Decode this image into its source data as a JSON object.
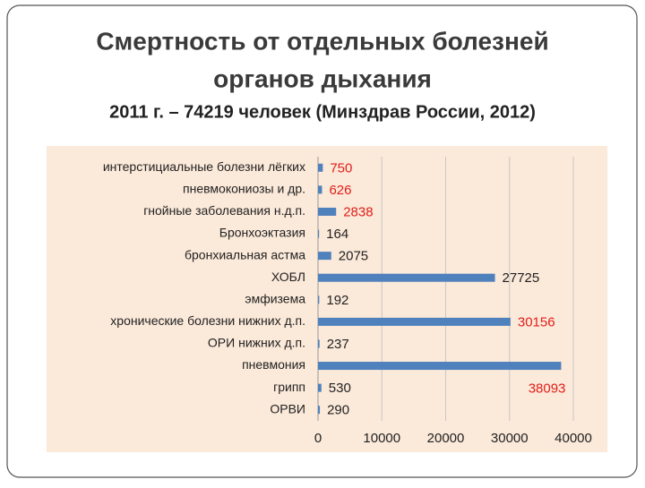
{
  "chart_data": {
    "type": "hbar",
    "title": [
      "Смертность от отдельных болезней",
      "органов дыхания"
    ],
    "subtitle": "2011 г. – 74219 человек (Минздрав России, 2012)",
    "categories": [
      "интерстициальные болезни лёгких",
      "пневмокониозы и др.",
      "гнойные заболевания н.д.п.",
      "Бронхоэктазия",
      "бронхиальная астма",
      "ХОБЛ",
      "эмфизема",
      "хронические болезни нижних д.п.",
      "ОРИ нижних д.п.",
      "пневмония",
      "грипп",
      "ОРВИ"
    ],
    "values": [
      750,
      626,
      2838,
      164,
      2075,
      27725,
      192,
      30156,
      237,
      38093,
      530,
      290
    ],
    "color": "#4f81bd",
    "value_label_colors": [
      "#e0201b",
      "#e0201b",
      "#e0201b",
      "#222222",
      "#222222",
      "#222222",
      "#222222",
      "#e0201b",
      "#222222",
      "#e0201b",
      "#222222",
      "#222222"
    ],
    "xlim": [
      0,
      40000
    ],
    "xticks": [
      0,
      10000,
      20000,
      30000,
      40000
    ],
    "grid": true
  }
}
